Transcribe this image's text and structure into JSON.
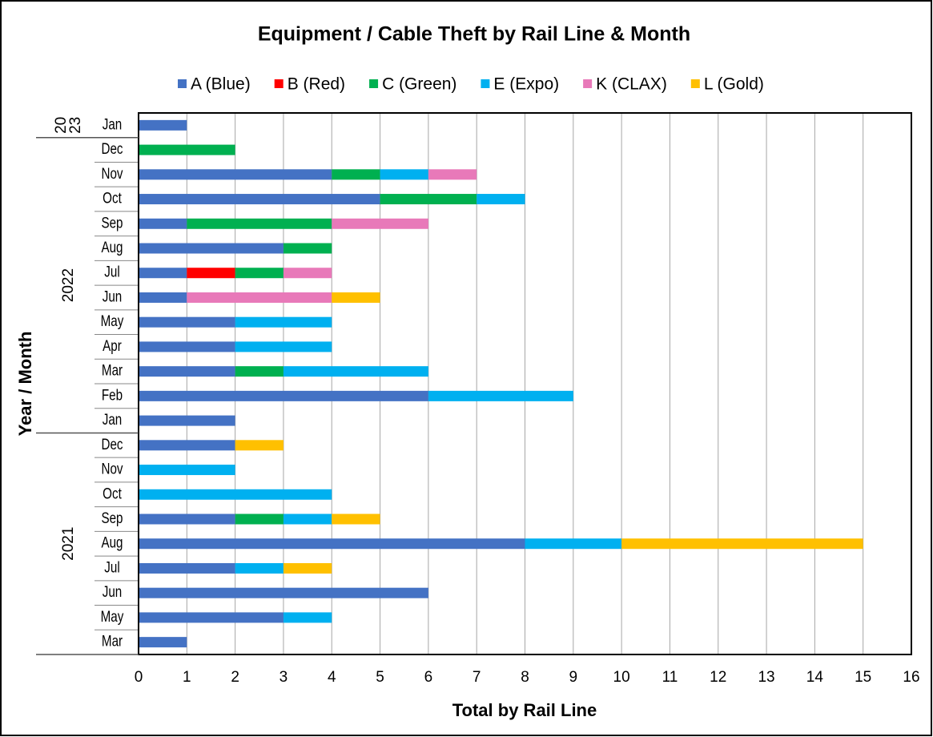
{
  "chart_data": {
    "type": "stacked-barh",
    "title": "Equipment / Cable Theft by Rail Line & Month",
    "x_label": "Total by Rail Line",
    "y_label": "Year / Month",
    "categories": [
      "Jan",
      "Dec",
      "Nov",
      "Oct",
      "Sep",
      "Aug",
      "Jul",
      "Jun",
      "May",
      "Apr",
      "Mar",
      "Feb",
      "Jan",
      "Dec",
      "Nov",
      "Oct",
      "Sep",
      "Aug",
      "Jul",
      "Jun",
      "May",
      "Mar"
    ],
    "groups": [
      {
        "label": [
          "20",
          "23"
        ],
        "count": 1
      },
      {
        "label": [
          "2022"
        ],
        "count": 12
      },
      {
        "label": [
          "2021"
        ],
        "count": 9
      }
    ],
    "series": [
      {
        "name": "A (Blue)",
        "color": "#4472c4",
        "values": [
          1,
          0,
          4,
          5,
          1,
          3,
          1,
          1,
          2,
          2,
          2,
          6,
          2,
          2,
          0,
          0,
          2,
          8,
          2,
          6,
          3,
          1
        ]
      },
      {
        "name": "B (Red)",
        "color": "#ff0000",
        "values": [
          0,
          0,
          0,
          0,
          0,
          0,
          1,
          0,
          0,
          0,
          0,
          0,
          0,
          0,
          0,
          0,
          0,
          0,
          0,
          0,
          0,
          0
        ]
      },
      {
        "name": "C (Green)",
        "color": "#00b050",
        "values": [
          0,
          2,
          1,
          2,
          3,
          1,
          1,
          0,
          0,
          0,
          1,
          0,
          0,
          0,
          0,
          0,
          1,
          0,
          0,
          0,
          0,
          0
        ]
      },
      {
        "name": "E (Expo)",
        "color": "#00b0f0",
        "values": [
          0,
          0,
          1,
          1,
          0,
          0,
          0,
          0,
          2,
          2,
          3,
          3,
          0,
          0,
          2,
          4,
          1,
          2,
          1,
          0,
          1,
          0
        ]
      },
      {
        "name": "K (CLAX)",
        "color": "#e879b9",
        "values": [
          0,
          0,
          1,
          0,
          2,
          0,
          1,
          3,
          0,
          0,
          0,
          0,
          0,
          0,
          0,
          0,
          0,
          0,
          0,
          0,
          0,
          0
        ]
      },
      {
        "name": "L (Gold)",
        "color": "#ffc000",
        "values": [
          0,
          0,
          0,
          0,
          0,
          0,
          0,
          1,
          0,
          0,
          0,
          0,
          0,
          1,
          0,
          0,
          1,
          5,
          1,
          0,
          0,
          0
        ]
      }
    ],
    "xlim": [
      0,
      16
    ],
    "xticks": [
      0,
      1,
      2,
      3,
      4,
      5,
      6,
      7,
      8,
      9,
      10,
      11,
      12,
      13,
      14,
      15,
      16
    ],
    "grid": true,
    "legend": "top"
  }
}
